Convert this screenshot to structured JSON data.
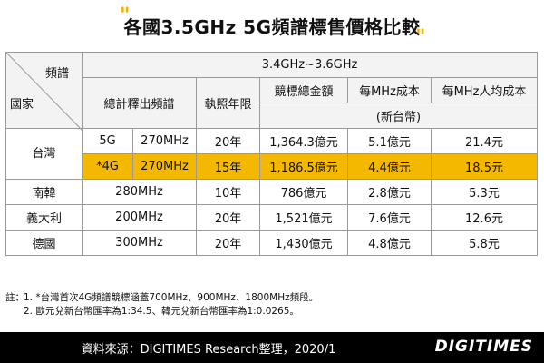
{
  "title": "各國3.5GHz 5G頻譜標售價格比較",
  "table": {
    "corner_top": "頻譜",
    "corner_bottom": "國家",
    "band_header": "3.4GHz~3.6GHz",
    "headers": [
      "總計釋出頻譜",
      "執照年限",
      "競標總金額",
      "每MHz成本",
      "每MHz人均成本"
    ],
    "unit_note": "(新台幣)",
    "taiwan": {
      "country": "台灣",
      "rows": [
        {
          "tech": "5G",
          "spectrum": "270MHz",
          "years": "20年",
          "total": "1,364.3億元",
          "per_mhz": "5.1億元",
          "per_capita": "21.4元",
          "highlight": false
        },
        {
          "tech": "*4G",
          "spectrum": "270MHz",
          "years": "15年",
          "total": "1,186.5億元",
          "per_mhz": "4.4億元",
          "per_capita": "18.5元",
          "highlight": true
        }
      ]
    },
    "others": [
      {
        "country": "南韓",
        "spectrum": "280MHz",
        "years": "10年",
        "total": "786億元",
        "per_mhz": "2.8億元",
        "per_capita": "5.3元"
      },
      {
        "country": "義大利",
        "spectrum": "200MHz",
        "years": "20年",
        "total": "1,521億元",
        "per_mhz": "7.6億元",
        "per_capita": "12.6元"
      },
      {
        "country": "德國",
        "spectrum": "300MHz",
        "years": "20年",
        "total": "1,430億元",
        "per_mhz": "4.8億元",
        "per_capita": "5.8元"
      }
    ]
  },
  "notes": {
    "label": "註：",
    "items": [
      "1. *台灣首次4G頻譜競標涵蓋700MHz、900MHz、1800MHz頻段。",
      "2. 歐元兌新台幣匯率為1:34.5、韓元兌新台幣匯率為1:0.0265。"
    ]
  },
  "footer": {
    "source": "資料來源：DIGITIMES Research整理，2020/1",
    "brand": "DIGITIMES"
  },
  "colors": {
    "highlight": "#f5b800",
    "quote": "#f0b400",
    "footer_bg": "#000000"
  }
}
